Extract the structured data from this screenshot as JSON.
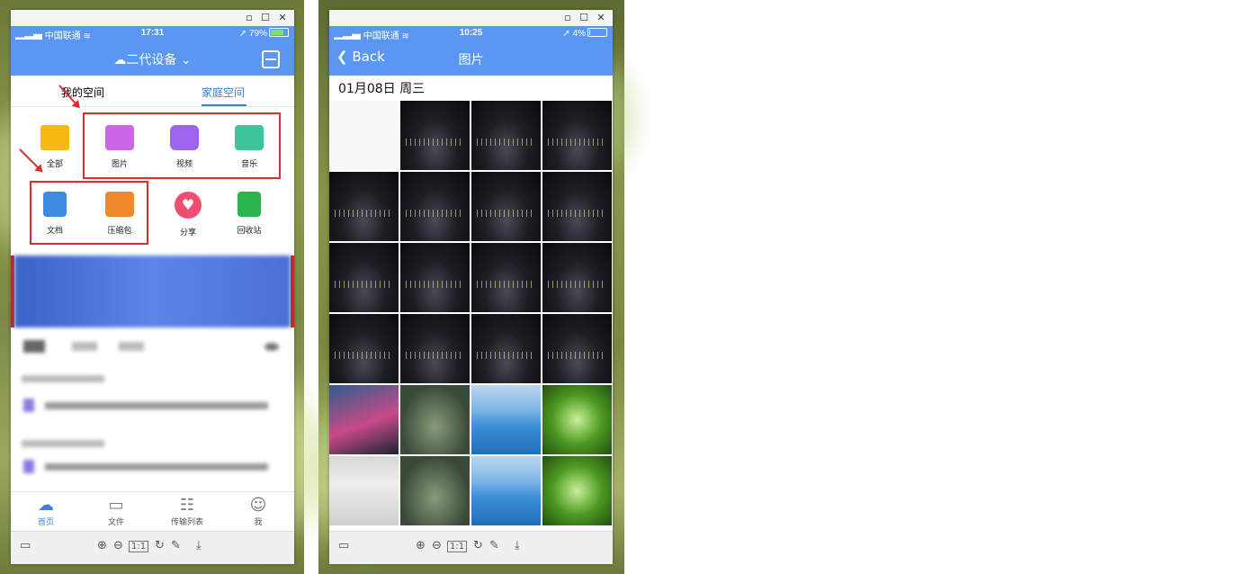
{
  "left": {
    "titlebar": {
      "minimize": "▫",
      "maximize": "☐",
      "close": "✕"
    },
    "status": {
      "carrier": "中国联通",
      "time": "17:31",
      "battery": "79%",
      "battery_level": 0.79
    },
    "nav_title": "二代设备",
    "tabs": [
      "我的空间",
      "家庭空间"
    ],
    "categories_row1": [
      "全部",
      "图片",
      "视频",
      "音乐"
    ],
    "categories_row2": [
      "文档",
      "压缩包",
      "分享",
      "回收站"
    ],
    "bottom_nav": [
      "首页",
      "文件",
      "传输列表",
      "我"
    ]
  },
  "right": {
    "titlebar": {
      "minimize": "▫",
      "maximize": "☐",
      "close": "✕"
    },
    "status": {
      "carrier": "中国联通",
      "time": "10:25",
      "battery": "4%",
      "battery_level": 0.04
    },
    "back_label": "Back",
    "nav_title": "图片",
    "date_header": "01月08日 周三"
  },
  "viewer_toolbar": {
    "icons": [
      "sidebar-icon",
      "zoom-in-icon",
      "zoom-out-icon",
      "actual-size-icon",
      "rotate-icon",
      "edit-icon",
      "download-icon"
    ]
  },
  "colors": {
    "accent": "#5a97f2",
    "active_tab": "#3c7fd8",
    "annotation": "#e12b2b"
  }
}
